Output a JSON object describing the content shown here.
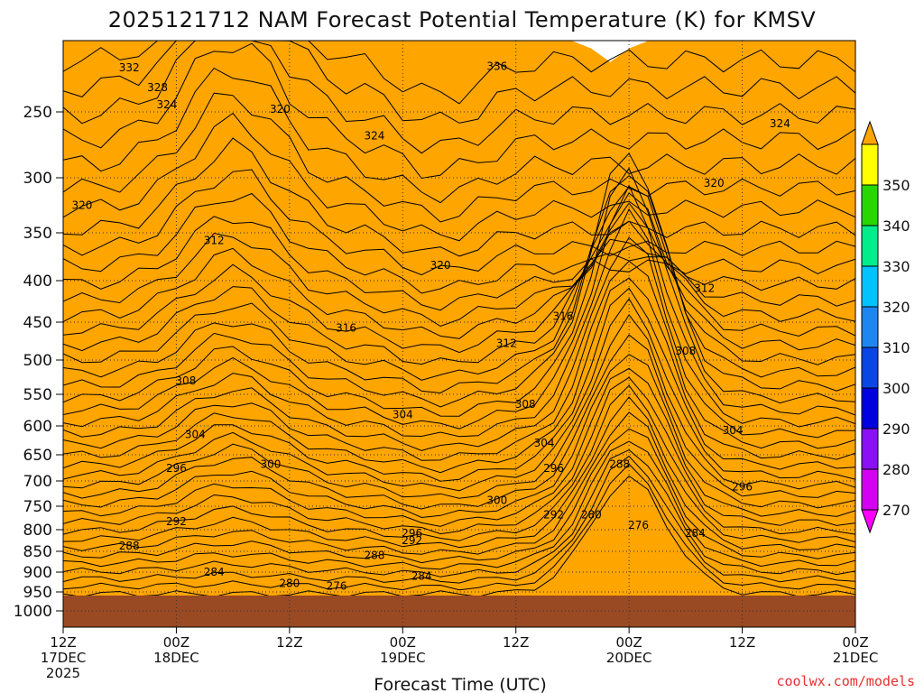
{
  "chart_data": {
    "type": "heatmap",
    "title": "2025121712 NAM Forecast Potential Temperature (K) for KMSV",
    "xlabel": "Forecast Time (UTC)",
    "ylabel": "",
    "y_axis": {
      "scale": "pressure",
      "inverted": true,
      "ticks": [
        "250",
        "300",
        "350",
        "400",
        "450",
        "500",
        "550",
        "600",
        "650",
        "700",
        "750",
        "800",
        "850",
        "900",
        "950",
        "1000"
      ],
      "ylim": [
        1050,
        200
      ]
    },
    "x_axis": {
      "ticks": [
        {
          "hour": 0,
          "lines": [
            "12Z",
            "17DEC",
            "2025"
          ]
        },
        {
          "hour": 12,
          "lines": [
            "00Z",
            "18DEC"
          ]
        },
        {
          "hour": 24,
          "lines": [
            "12Z"
          ]
        },
        {
          "hour": 36,
          "lines": [
            "00Z",
            "19DEC"
          ]
        },
        {
          "hour": 48,
          "lines": [
            "12Z"
          ]
        },
        {
          "hour": 60,
          "lines": [
            "00Z",
            "20DEC"
          ]
        },
        {
          "hour": 72,
          "lines": [
            "12Z"
          ]
        },
        {
          "hour": 84,
          "lines": [
            "00Z",
            "21DEC"
          ]
        }
      ],
      "xlim": [
        0,
        84
      ]
    },
    "colorbar": {
      "levels": [
        270,
        280,
        290,
        300,
        310,
        320,
        330,
        340,
        350
      ],
      "labels": [
        "270",
        "280",
        "290",
        "300",
        "310",
        "320",
        "330",
        "340",
        "350"
      ],
      "colors": [
        "#ff00ff",
        "#d400f2",
        "#8a10f5",
        "#0000e0",
        "#0a46e6",
        "#1e86f0",
        "#00c3ff",
        "#00ed8c",
        "#28d700",
        "#ffff00",
        "#ffa500"
      ]
    },
    "contour_interval_K": 2,
    "contour_labels": [
      {
        "text": "332",
        "hour": 7,
        "p": 219
      },
      {
        "text": "336",
        "hour": 46,
        "p": 218
      },
      {
        "text": "328",
        "hour": 10,
        "p": 233
      },
      {
        "text": "324",
        "hour": 11,
        "p": 245
      },
      {
        "text": "320",
        "hour": 23,
        "p": 248
      },
      {
        "text": "324",
        "hour": 33,
        "p": 268
      },
      {
        "text": "324",
        "hour": 76,
        "p": 259
      },
      {
        "text": "320",
        "hour": 69,
        "p": 305
      },
      {
        "text": "320",
        "hour": 2,
        "p": 325
      },
      {
        "text": "312",
        "hour": 16,
        "p": 358
      },
      {
        "text": "320",
        "hour": 40,
        "p": 384
      },
      {
        "text": "312",
        "hour": 68,
        "p": 409
      },
      {
        "text": "316",
        "hour": 30,
        "p": 458
      },
      {
        "text": "316",
        "hour": 53,
        "p": 443
      },
      {
        "text": "312",
        "hour": 47,
        "p": 478
      },
      {
        "text": "308",
        "hour": 66,
        "p": 488
      },
      {
        "text": "308",
        "hour": 13,
        "p": 530
      },
      {
        "text": "304",
        "hour": 36,
        "p": 582
      },
      {
        "text": "308",
        "hour": 49,
        "p": 566
      },
      {
        "text": "304",
        "hour": 14,
        "p": 615
      },
      {
        "text": "304",
        "hour": 71,
        "p": 608
      },
      {
        "text": "304",
        "hour": 51,
        "p": 630
      },
      {
        "text": "300",
        "hour": 22,
        "p": 668
      },
      {
        "text": "296",
        "hour": 12,
        "p": 676
      },
      {
        "text": "296",
        "hour": 52,
        "p": 676
      },
      {
        "text": "288",
        "hour": 59,
        "p": 668
      },
      {
        "text": "296",
        "hour": 72,
        "p": 712
      },
      {
        "text": "300",
        "hour": 46,
        "p": 738
      },
      {
        "text": "292",
        "hour": 52,
        "p": 768
      },
      {
        "text": "280",
        "hour": 56,
        "p": 768
      },
      {
        "text": "292",
        "hour": 12,
        "p": 783
      },
      {
        "text": "276",
        "hour": 61,
        "p": 790
      },
      {
        "text": "284",
        "hour": 67,
        "p": 808
      },
      {
        "text": "296",
        "hour": 37,
        "p": 808
      },
      {
        "text": "292",
        "hour": 37,
        "p": 825
      },
      {
        "text": "288",
        "hour": 7,
        "p": 838
      },
      {
        "text": "288",
        "hour": 33,
        "p": 860
      },
      {
        "text": "284",
        "hour": 16,
        "p": 900
      },
      {
        "text": "284",
        "hour": 38,
        "p": 910
      },
      {
        "text": "280",
        "hour": 24,
        "p": 928
      },
      {
        "text": "276",
        "hour": 29,
        "p": 935
      }
    ],
    "grid": "dotted"
  },
  "credit": "coolwx.com/models"
}
